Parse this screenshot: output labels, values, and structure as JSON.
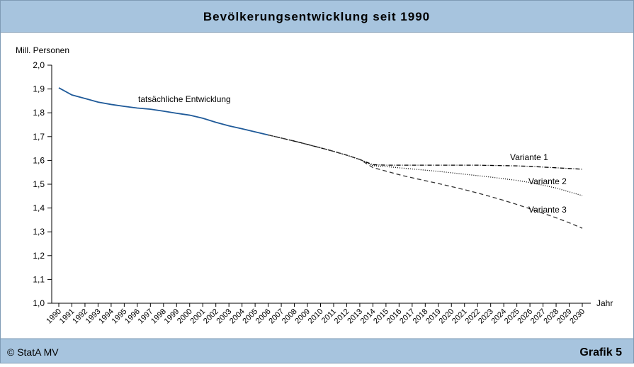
{
  "header": {
    "title": "Bevölkerungsentwicklung seit 1990"
  },
  "footer": {
    "source": "© StatA MV",
    "label": "Grafik 5"
  },
  "chart_data": {
    "type": "line",
    "y_label": "Mill. Personen",
    "x_label": "Jahr",
    "x": [
      1990,
      1991,
      1992,
      1993,
      1994,
      1995,
      1996,
      1997,
      1998,
      1999,
      2000,
      2001,
      2002,
      2003,
      2004,
      2005,
      2006,
      2007,
      2008,
      2009,
      2010,
      2011,
      2012,
      2013,
      2014,
      2015,
      2016,
      2017,
      2018,
      2019,
      2020,
      2021,
      2022,
      2023,
      2024,
      2025,
      2026,
      2027,
      2028,
      2029,
      2030
    ],
    "xlim": [
      1990,
      2030
    ],
    "ylim": [
      1.0,
      2.0
    ],
    "yticks": [
      {
        "value": 1.0,
        "label": "1,0"
      },
      {
        "value": 1.1,
        "label": "1,1"
      },
      {
        "value": 1.2,
        "label": "1,2"
      },
      {
        "value": 1.3,
        "label": "1,3"
      },
      {
        "value": 1.4,
        "label": "1,4"
      },
      {
        "value": 1.5,
        "label": "1,5"
      },
      {
        "value": 1.6,
        "label": "1,6"
      },
      {
        "value": 1.7,
        "label": "1,7"
      },
      {
        "value": 1.8,
        "label": "1,8"
      },
      {
        "value": 1.9,
        "label": "1,9"
      },
      {
        "value": 2.0,
        "label": "2,0"
      }
    ],
    "series": [
      {
        "name": "tatsächliche Entwicklung",
        "color": "#1f5a99",
        "style": "solid",
        "values": [
          1.905,
          1.875,
          1.86,
          1.845,
          1.835,
          1.827,
          1.82,
          1.815,
          1.807,
          1.798,
          1.79,
          1.777,
          1.76,
          1.745,
          1.733,
          1.72,
          1.707,
          null,
          null,
          null,
          null,
          null,
          null,
          null,
          null,
          null,
          null,
          null,
          null,
          null,
          null,
          null,
          null,
          null,
          null,
          null,
          null,
          null,
          null,
          null,
          null
        ]
      },
      {
        "name": "Variante 1",
        "color": "#000000",
        "style": "dashdot",
        "values": [
          null,
          null,
          null,
          null,
          null,
          null,
          null,
          null,
          null,
          null,
          null,
          null,
          null,
          null,
          null,
          null,
          1.707,
          1.694,
          1.681,
          1.667,
          1.653,
          1.638,
          1.622,
          1.604,
          1.582,
          1.58,
          1.58,
          1.58,
          1.58,
          1.58,
          1.58,
          1.58,
          1.58,
          1.579,
          1.578,
          1.577,
          1.575,
          1.572,
          1.569,
          1.566,
          1.563
        ]
      },
      {
        "name": "Variante 2",
        "color": "#000000",
        "style": "dotted",
        "values": [
          null,
          null,
          null,
          null,
          null,
          null,
          null,
          null,
          null,
          null,
          null,
          null,
          null,
          null,
          null,
          null,
          1.707,
          1.694,
          1.681,
          1.667,
          1.653,
          1.638,
          1.622,
          1.604,
          1.578,
          1.574,
          1.569,
          1.564,
          1.559,
          1.554,
          1.548,
          1.542,
          1.536,
          1.53,
          1.523,
          1.516,
          1.507,
          1.496,
          1.484,
          1.468,
          1.452
        ]
      },
      {
        "name": "Variante 3",
        "color": "#333333",
        "style": "dashed",
        "values": [
          null,
          null,
          null,
          null,
          null,
          null,
          null,
          null,
          null,
          null,
          null,
          null,
          null,
          null,
          null,
          null,
          1.707,
          1.694,
          1.681,
          1.667,
          1.653,
          1.638,
          1.622,
          1.604,
          1.57,
          1.555,
          1.54,
          1.527,
          1.515,
          1.503,
          1.49,
          1.477,
          1.463,
          1.448,
          1.432,
          1.415,
          1.397,
          1.378,
          1.359,
          1.338,
          1.315
        ]
      }
    ]
  }
}
